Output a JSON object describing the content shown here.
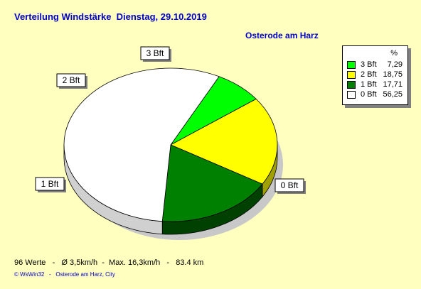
{
  "title": "Verteilung Windstärke  Dienstag, 29.10.2019",
  "location": "Osterode am Harz",
  "legend": {
    "unit": "%",
    "entries": [
      {
        "label": "3 Bft",
        "value": "7,29",
        "color": "#00ff00"
      },
      {
        "label": "2 Bft",
        "value": "18,75",
        "color": "#ffff00"
      },
      {
        "label": "1 Bft",
        "value": "17,71",
        "color": "#008000"
      },
      {
        "label": "0 Bft",
        "value": "56,25",
        "color": "#ffffff"
      }
    ]
  },
  "stats": "96 Werte   -   Ø 3,5km/h  -  Max. 16,3km/h   -   83.4 km",
  "footer": "© WsWin32   -   Osterode am Harz, City",
  "chart_data": {
    "type": "pie",
    "categories": [
      "3 Bft",
      "2 Bft",
      "1 Bft",
      "0 Bft"
    ],
    "values": [
      7.29,
      18.75,
      17.71,
      56.25
    ],
    "colors": [
      "#00ff00",
      "#ffff00",
      "#008000",
      "#ffffff"
    ],
    "side_colors": [
      "#00a000",
      "#a0a000",
      "#004000",
      "#d0d0d0"
    ]
  }
}
